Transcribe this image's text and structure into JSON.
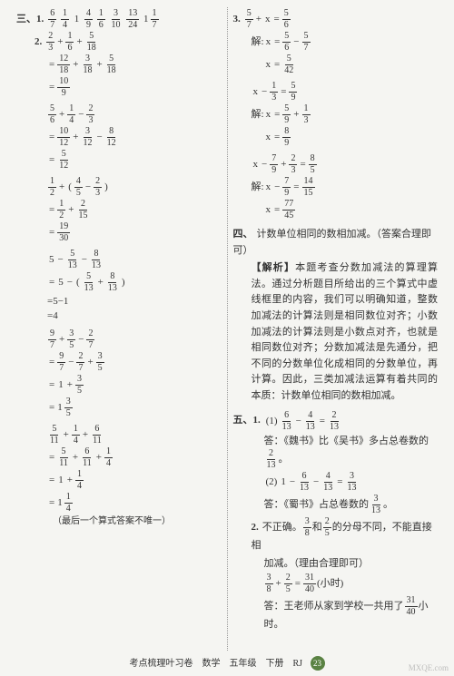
{
  "leftColumn": {
    "row1": {
      "label": "三、1.",
      "items": [
        "6/7",
        "1/4",
        "1",
        "4/9",
        "1/6",
        "3/10",
        "13/24",
        "1 1/7"
      ]
    },
    "row2label": "2.",
    "step1": {
      "terms": [
        "2/3",
        "+",
        "1/6",
        "+",
        "5/18"
      ]
    },
    "step2": {
      "eq": "=",
      "terms": [
        "12/18",
        "+",
        "3/18",
        "+",
        "5/18"
      ]
    },
    "step3": {
      "eq": "=",
      "terms": [
        "10/9"
      ]
    },
    "step4": {
      "terms": [
        "5/6",
        "+",
        "1/4",
        "−",
        "2/3"
      ]
    },
    "step5": {
      "eq": "=",
      "terms": [
        "10/12",
        "+",
        "3/12",
        "−",
        "8/12"
      ]
    },
    "step6": {
      "eq": "=",
      "terms": [
        "5/12"
      ]
    },
    "step7": {
      "terms": [
        "1/2",
        "+",
        "(",
        "4/5",
        "−",
        "2/3",
        ")"
      ]
    },
    "step8": {
      "eq": "=",
      "terms": [
        "1/2",
        "+",
        "2/15"
      ]
    },
    "step9": {
      "eq": "=",
      "terms": [
        "19/30"
      ]
    },
    "step10": {
      "terms": [
        "5",
        "−",
        "5/13",
        "−",
        "8/13"
      ]
    },
    "step11": {
      "eq": "=",
      "terms": [
        "5",
        "−",
        "(",
        "5/13",
        "+",
        "8/13",
        ")"
      ]
    },
    "step12": {
      "eq": "=5−1"
    },
    "step13": {
      "eq": "=4"
    },
    "step14": {
      "terms": [
        "9/7",
        "+",
        "3/5",
        "−",
        "2/7"
      ]
    },
    "step15": {
      "eq": "=",
      "terms": [
        "9/7",
        "−",
        "2/7",
        "+",
        "3/5"
      ]
    },
    "step16": {
      "eq": "=",
      "terms": [
        "1",
        "+",
        "3/5"
      ]
    },
    "step17": {
      "eq": "=",
      "mixed": "1 3/5"
    },
    "step18": {
      "terms": [
        "5/11",
        "+",
        "1/4",
        "+",
        "6/11"
      ]
    },
    "step19": {
      "eq": "=",
      "terms": [
        "5/11",
        "+",
        "6/11",
        "+",
        "1/4"
      ]
    },
    "step20": {
      "eq": "=",
      "terms": [
        "1",
        "+",
        "1/4"
      ]
    },
    "step21": {
      "eq": "=",
      "mixed": "1 1/4"
    },
    "note": "（最后一个算式答案不唯一）"
  },
  "rightColumn": {
    "q3": {
      "label": "3.",
      "eq1": {
        "terms": [
          "5/7",
          "+",
          "x",
          "=",
          "5/6"
        ]
      },
      "solve1label": "解:",
      "solve1a": {
        "terms": [
          "x",
          "=",
          "5/6",
          "−",
          "5/7"
        ]
      },
      "solve1b": {
        "terms": [
          "x",
          "=",
          "5/42"
        ]
      },
      "eq2": {
        "terms": [
          "x",
          "−",
          "1/3",
          "=",
          "5/9"
        ]
      },
      "solve2label": "解:",
      "solve2a": {
        "terms": [
          "x",
          "=",
          "5/9",
          "+",
          "1/3"
        ]
      },
      "solve2b": {
        "terms": [
          "x",
          "=",
          "8/9"
        ]
      },
      "eq3": {
        "terms": [
          "x",
          "−",
          "7/9",
          "+",
          "2/3",
          "=",
          "8/5"
        ]
      },
      "solve3label": "解:",
      "solve3a": {
        "terms": [
          "x",
          "−",
          "7/9",
          "=",
          "14/15"
        ]
      },
      "solve3b": {
        "terms": [
          "x",
          "=",
          "77/45"
        ]
      }
    },
    "q4": {
      "label": "四、",
      "title": "计数单位相同的数相加减。（答案合理即可）",
      "analysisLabel": "【解析】",
      "analysis": "本题考查分数加减法的算理算法。通过分析题目所给出的三个算式中虚线框里的内容，我们可以明确知道，整数加减法的计算法则是相同数位对齐；小数加减法的计算法则是小数点对齐，也就是相同数位对齐；分数加减法是先通分，把不同的分数单位化成相同的分数单位，再计算。因此，三类加减法运算有着共同的本质：计数单位相同的数相加减。"
    },
    "q5": {
      "label": "五、1.",
      "part1eq": {
        "lhs": "(1)",
        "terms": [
          "6/13",
          "−",
          "4/13",
          "=",
          "2/13"
        ]
      },
      "part1ans": "答：《魏书》比《吴书》多占总卷数的",
      "part1frac": "2/13",
      "part2eq": {
        "lhs": "(2)",
        "terms": [
          "1",
          "−",
          "6/13",
          "−",
          "4/13",
          "=",
          "3/13"
        ]
      },
      "part2ans": "答：《蜀书》占总卷数的",
      "part2frac": "3/13",
      "part2end": "。",
      "q52label": "2.",
      "q52text1": "不正确。",
      "q52frac1": "3/8",
      "q52mid": "和",
      "q52frac2": "2/5",
      "q52text2": "的分母不同，不能直接相",
      "q52text3": "加减。（理由合理即可）",
      "q52eq": {
        "terms": [
          "3/8",
          "+",
          "2/5",
          "=",
          "31/40"
        ]
      },
      "q52unit": "(小时)",
      "q52ans": "答：王老师从家到学校一共用了",
      "q52ansfrac": "31/40",
      "q52ansend": "小时。"
    }
  },
  "footer": {
    "text": "考点梳理叶习卷　数学　五年级　下册　RJ",
    "page": "23"
  },
  "watermark": "MXQE.com"
}
